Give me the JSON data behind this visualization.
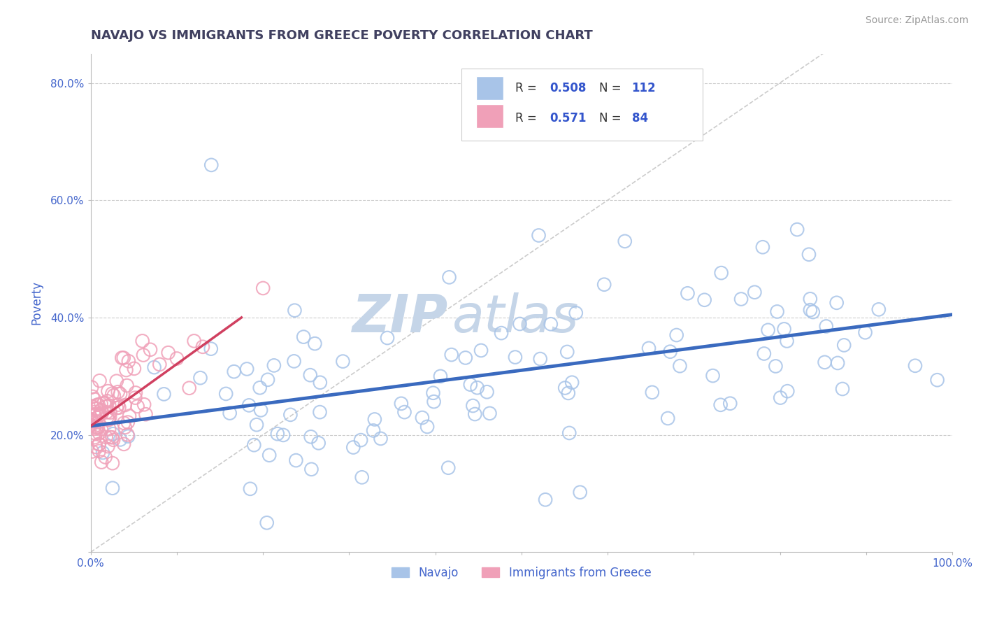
{
  "title": "NAVAJO VS IMMIGRANTS FROM GREECE POVERTY CORRELATION CHART",
  "source": "Source: ZipAtlas.com",
  "ylabel_label": "Poverty",
  "x_min": 0.0,
  "x_max": 1.0,
  "y_min": 0.0,
  "y_max": 0.85,
  "x_ticks": [
    0.0,
    0.1,
    0.2,
    0.3,
    0.4,
    0.5,
    0.6,
    0.7,
    0.8,
    0.9,
    1.0
  ],
  "x_tick_labels": [
    "0.0%",
    "",
    "",
    "",
    "",
    "",
    "",
    "",
    "",
    "",
    "100.0%"
  ],
  "y_ticks": [
    0.0,
    0.2,
    0.4,
    0.6,
    0.8
  ],
  "y_tick_labels": [
    "",
    "20.0%",
    "40.0%",
    "60.0%",
    "80.0%"
  ],
  "navajo_edge_color": "#a8c4e8",
  "greece_edge_color": "#f0a0b8",
  "navajo_line_color": "#3a6abf",
  "greece_line_color": "#d04060",
  "navajo_R": "0.508",
  "navajo_N": "112",
  "greece_R": "0.571",
  "greece_N": "84",
  "legend_value_color": "#3355cc",
  "legend_label_color": "#333333",
  "watermark_zip_color": "#c5d5e8",
  "watermark_atlas_color": "#c5d5e8",
  "title_color": "#404060",
  "tick_color": "#4466cc",
  "grid_color": "#cccccc",
  "navajo_line_x": [
    0.0,
    1.0
  ],
  "navajo_line_y": [
    0.215,
    0.405
  ],
  "greece_line_x": [
    0.0,
    0.175
  ],
  "greece_line_y": [
    0.215,
    0.4
  ]
}
